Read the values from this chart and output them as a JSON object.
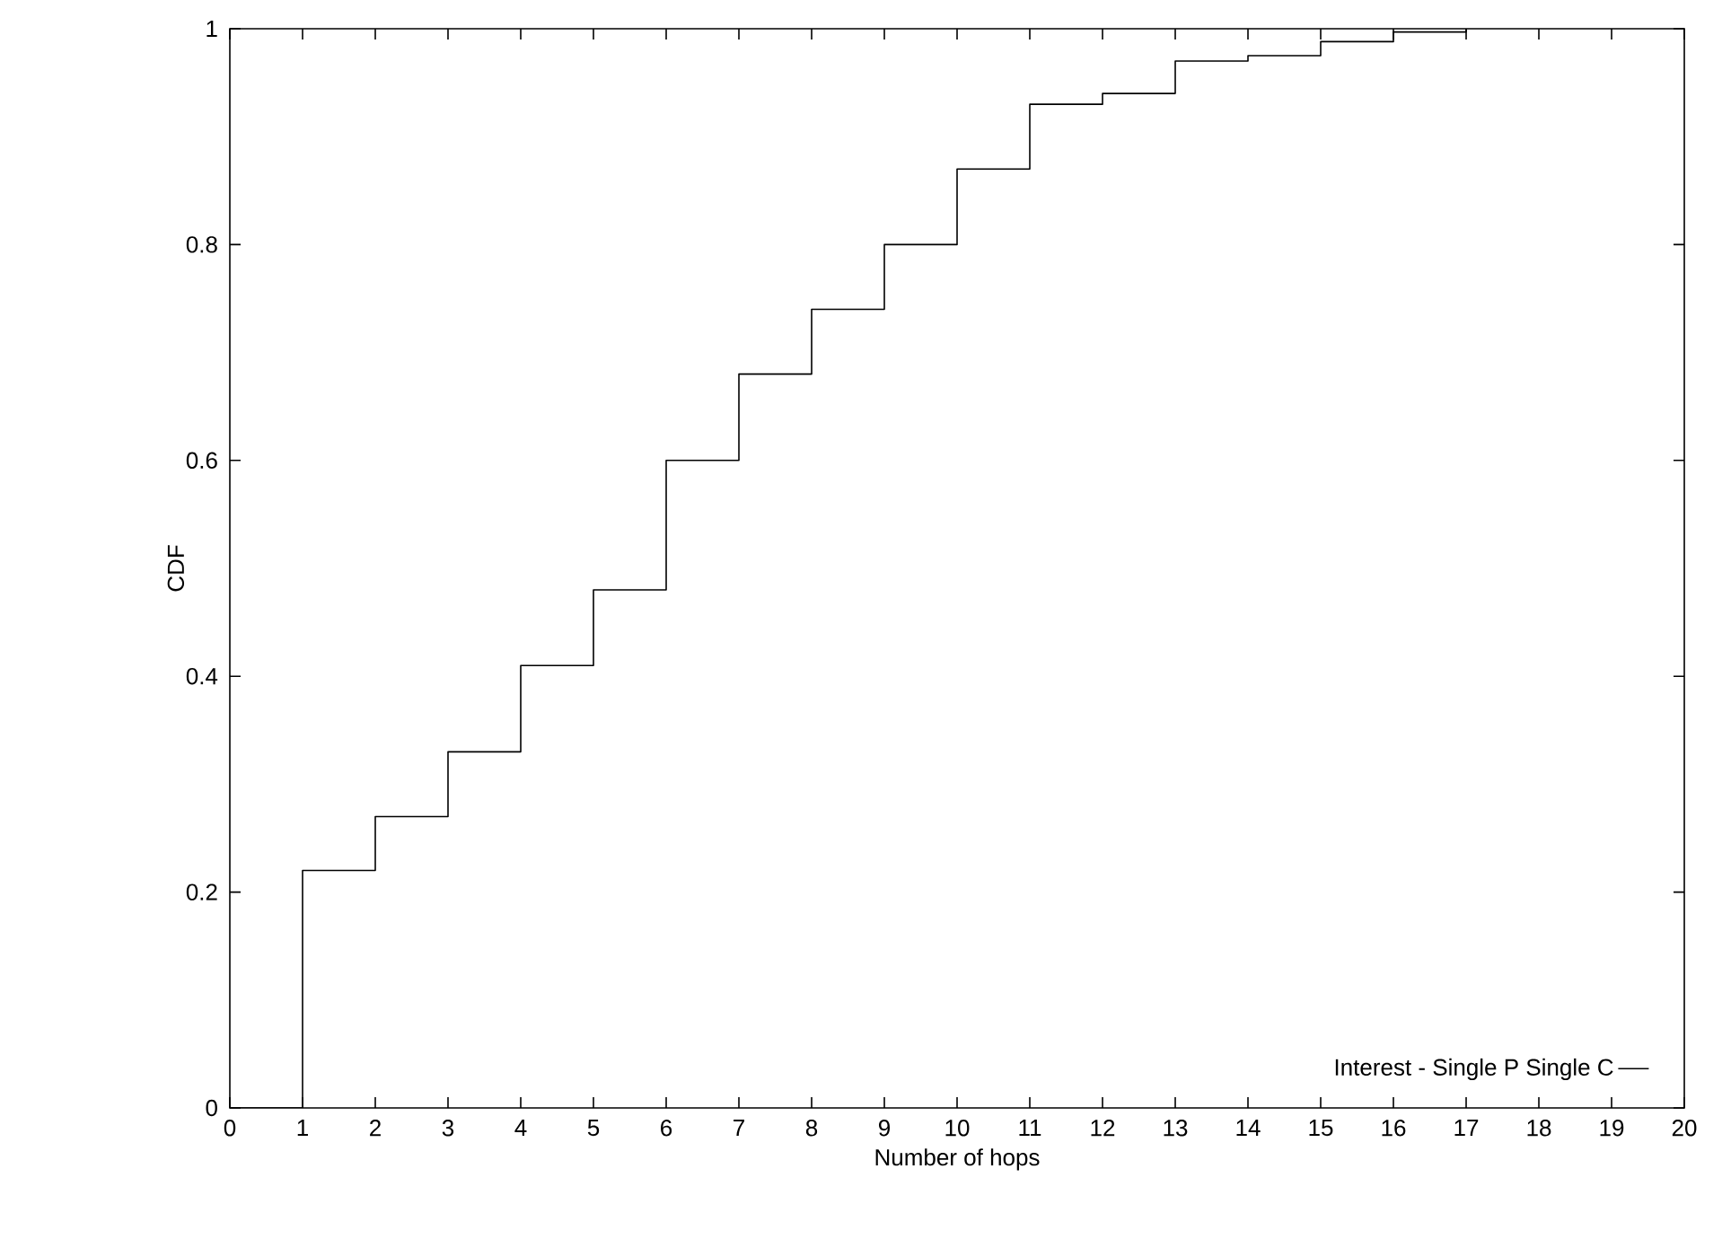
{
  "chart_data": {
    "type": "step",
    "xlabel": "Number of hops",
    "ylabel": "CDF",
    "x": [
      0,
      1,
      2,
      3,
      4,
      5,
      6,
      7,
      8,
      9,
      10,
      11,
      12,
      13,
      14,
      15,
      16,
      17
    ],
    "series": [
      {
        "name": "Interest - Single P Single C",
        "color": "#000000",
        "values": [
          0,
          0.22,
          0.27,
          0.33,
          0.41,
          0.48,
          0.6,
          0.68,
          0.74,
          0.8,
          0.87,
          0.93,
          0.94,
          0.97,
          0.975,
          0.988,
          0.997,
          1
        ]
      }
    ],
    "xlim": [
      0,
      20
    ],
    "xticks": [
      0,
      1,
      2,
      3,
      4,
      5,
      6,
      7,
      8,
      9,
      10,
      11,
      12,
      13,
      14,
      15,
      16,
      17,
      18,
      19,
      20
    ],
    "ylim": [
      0,
      1
    ],
    "yticks": [
      0,
      0.2,
      0.4,
      0.6,
      0.8,
      1
    ],
    "grid": false,
    "legend": "bottom right",
    "marker": "none",
    "line_style": "solid"
  }
}
